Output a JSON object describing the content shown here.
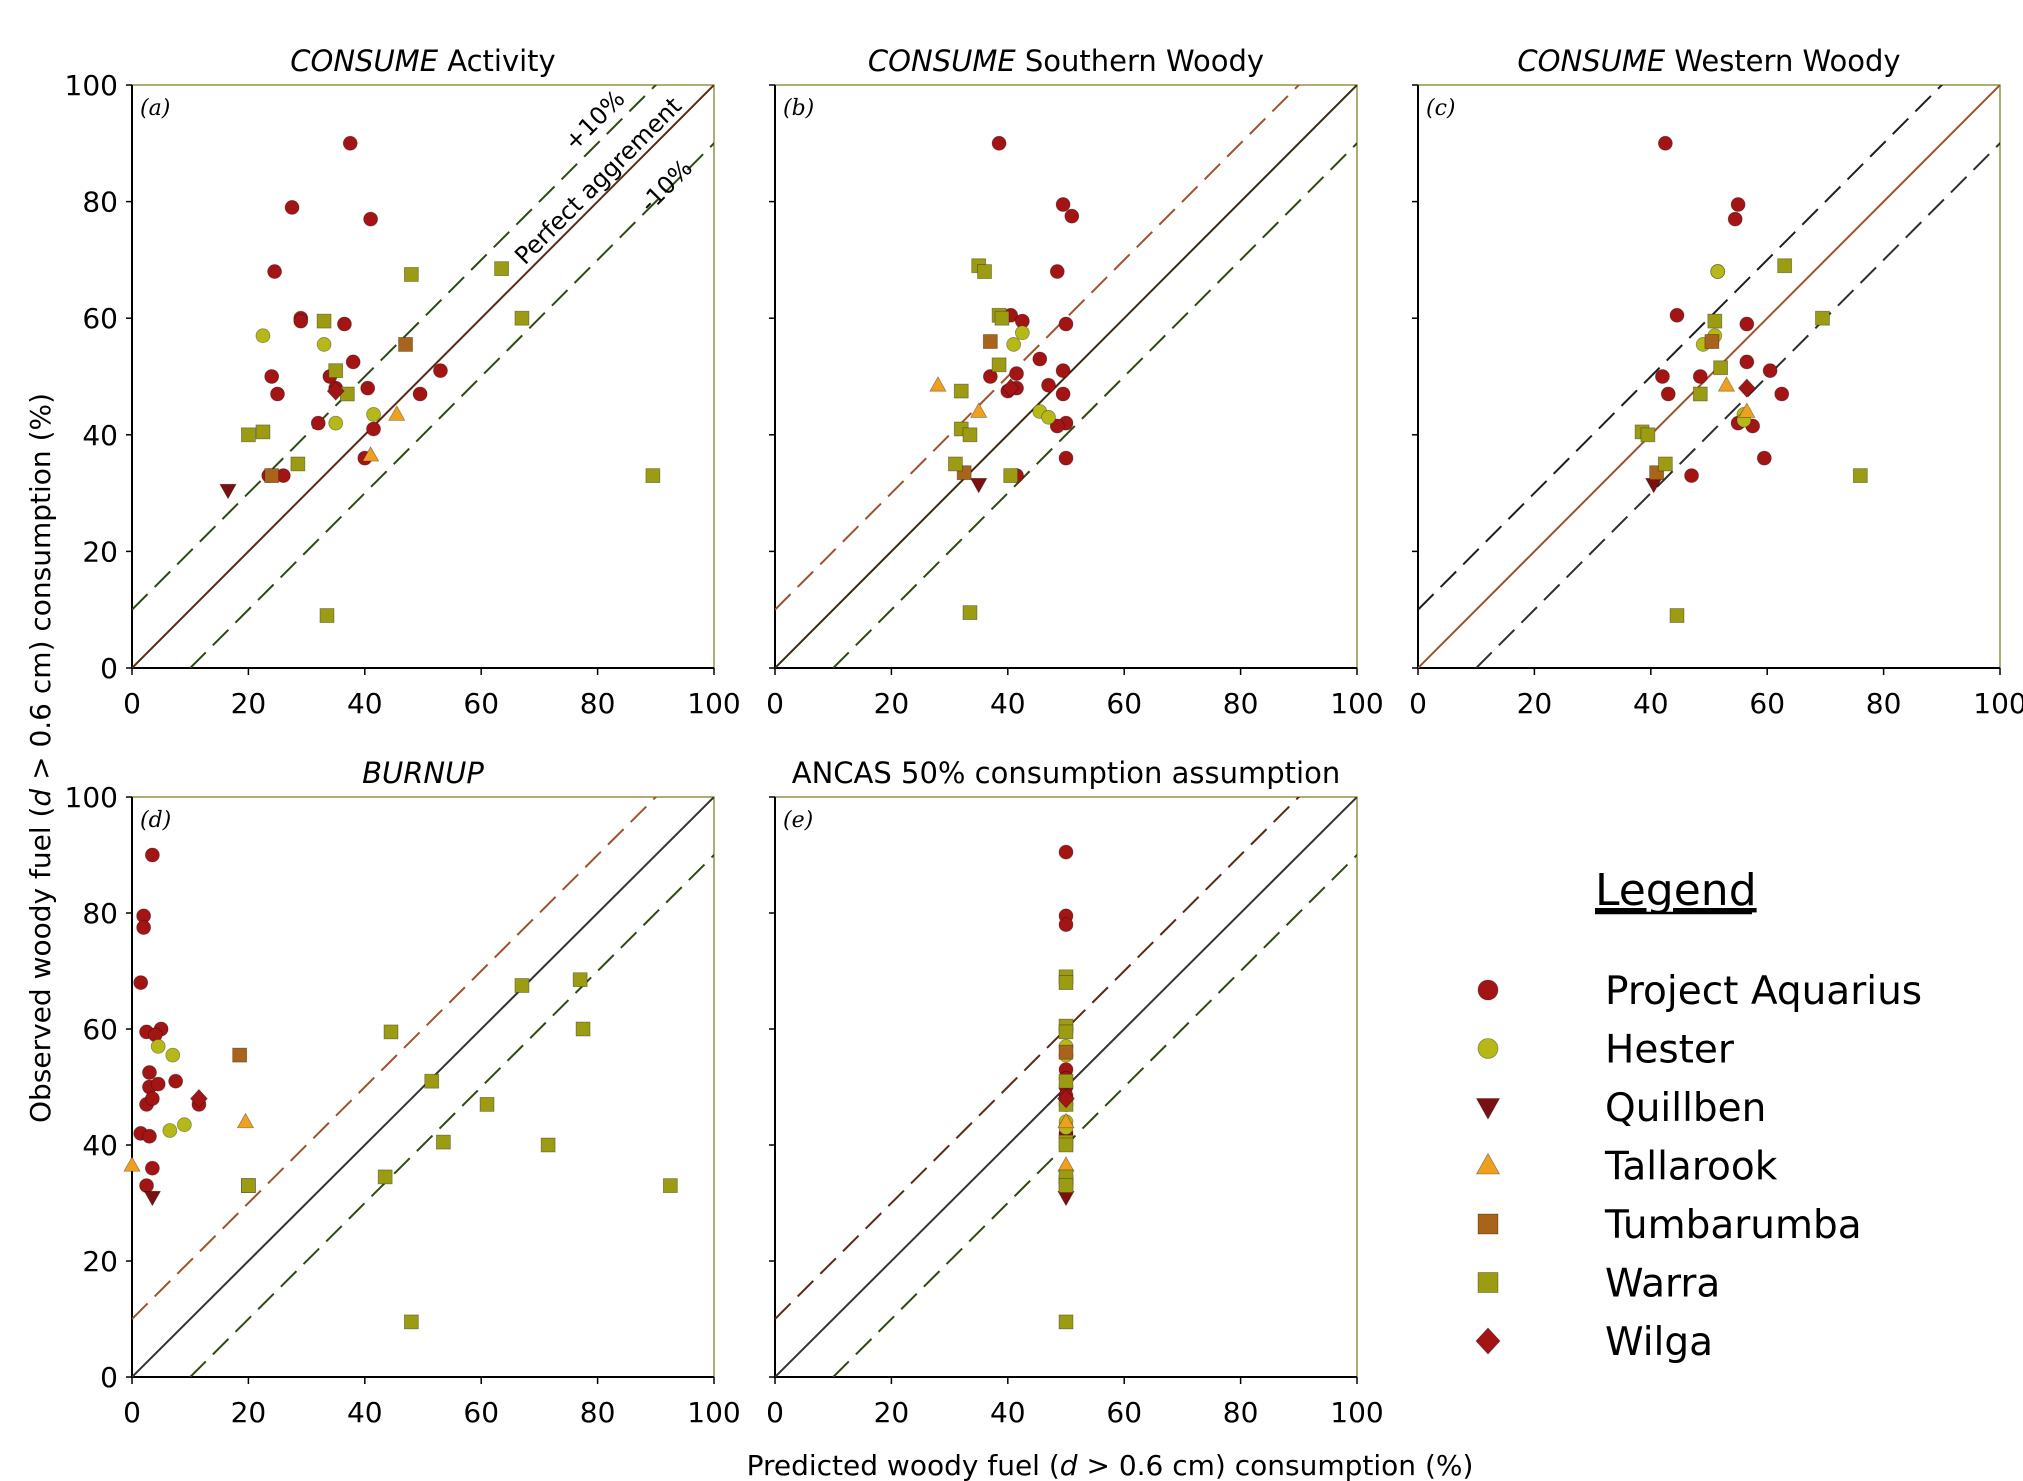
{
  "y_axis_label_parts": [
    "Observed woody fuel (",
    "d",
    " > 0.6 cm) consumption (%)"
  ],
  "x_axis_label_parts": [
    "Predicted woody fuel (",
    "d",
    " > 0.6 cm) consumption (%)"
  ],
  "legend": {
    "title": "Legend",
    "items": [
      {
        "name": "Project Aquarius",
        "marker": "circle",
        "color": "#a31515"
      },
      {
        "name": "Hester",
        "marker": "circle",
        "color": "#b5b817"
      },
      {
        "name": "Quillben",
        "marker": "triangle-down",
        "color": "#7a1010"
      },
      {
        "name": "Tallarook",
        "marker": "triangle-up",
        "color": "#f0a020"
      },
      {
        "name": "Tumbarumba",
        "marker": "square",
        "color": "#a8641a"
      },
      {
        "name": "Warra",
        "marker": "square",
        "color": "#9b9b14"
      },
      {
        "name": "Wilga",
        "marker": "diamond",
        "color": "#a31515"
      }
    ]
  },
  "chart_data": [
    {
      "type": "scatter",
      "panel": "(a)",
      "title_italic": "CONSUME",
      "title_rest": " Activity",
      "xlim": [
        0,
        100
      ],
      "ylim": [
        0,
        100
      ],
      "xticks": [
        "0",
        "20",
        "40",
        "60",
        "80",
        "100"
      ],
      "yticks": [
        "0",
        "20",
        "40",
        "60",
        "80",
        "100"
      ],
      "ref_lines": [
        "+10%",
        "Perfect aggrement",
        "-10%"
      ],
      "annotations": [
        "+10%",
        "Perfect aggrement",
        "-10%"
      ],
      "series": [
        {
          "name": "Project Aquarius",
          "points": [
            [
              37.5,
              90
            ],
            [
              27.5,
              79
            ],
            [
              41,
              77
            ],
            [
              24.5,
              68
            ],
            [
              29,
              60
            ],
            [
              29,
              59.5
            ],
            [
              36.5,
              59
            ],
            [
              38,
              52.5
            ],
            [
              24,
              50
            ],
            [
              34,
              50
            ],
            [
              25,
              47
            ],
            [
              35,
              48
            ],
            [
              40.5,
              48
            ],
            [
              53,
              51
            ],
            [
              49.5,
              47
            ],
            [
              32,
              42
            ],
            [
              41.5,
              41
            ],
            [
              26,
              33
            ],
            [
              23.5,
              33
            ],
            [
              40,
              36
            ]
          ]
        },
        {
          "name": "Hester",
          "points": [
            [
              22.5,
              57
            ],
            [
              33,
              55.5
            ],
            [
              35,
              42
            ],
            [
              41.5,
              43.5
            ]
          ]
        },
        {
          "name": "Quillben",
          "points": [
            [
              16.5,
              30.5
            ]
          ]
        },
        {
          "name": "Tallarook",
          "points": [
            [
              45.5,
              43.5
            ],
            [
              41,
              36.5
            ]
          ]
        },
        {
          "name": "Tumbarumba",
          "points": [
            [
              47,
              55.5
            ],
            [
              24,
              33
            ]
          ]
        },
        {
          "name": "Warra",
          "points": [
            [
              33,
              59.5
            ],
            [
              35,
              51
            ],
            [
              37,
              47
            ],
            [
              48,
              67.5
            ],
            [
              63.5,
              68.5
            ],
            [
              67,
              60
            ],
            [
              20,
              40
            ],
            [
              22.5,
              40.5
            ],
            [
              28.5,
              35
            ],
            [
              89.5,
              33
            ],
            [
              33.5,
              9
            ]
          ]
        },
        {
          "name": "Wilga",
          "points": [
            [
              35,
              47.5
            ]
          ]
        }
      ]
    },
    {
      "type": "scatter",
      "panel": "(b)",
      "title_italic": "CONSUME",
      "title_rest": " Southern Woody",
      "xlim": [
        0,
        100
      ],
      "ylim": [
        0,
        100
      ],
      "xticks": [
        "0",
        "20",
        "40",
        "60",
        "80",
        "100"
      ],
      "yticks": [],
      "series": [
        {
          "name": "Project Aquarius",
          "points": [
            [
              38.5,
              90
            ],
            [
              49.5,
              79.5
            ],
            [
              51,
              77.5
            ],
            [
              48.5,
              68
            ],
            [
              40.5,
              60.5
            ],
            [
              42.5,
              59.5
            ],
            [
              50,
              59
            ],
            [
              45.5,
              53
            ],
            [
              37,
              50
            ],
            [
              41.5,
              50.5
            ],
            [
              49.5,
              51
            ],
            [
              40,
              47.5
            ],
            [
              41.5,
              48
            ],
            [
              47,
              48.5
            ],
            [
              49.5,
              47
            ],
            [
              50,
              42
            ],
            [
              48.5,
              41.5
            ],
            [
              50,
              36
            ],
            [
              41.5,
              33
            ]
          ]
        },
        {
          "name": "Hester",
          "points": [
            [
              41,
              55.5
            ],
            [
              42.5,
              57.5
            ],
            [
              45.5,
              44
            ],
            [
              47,
              43
            ]
          ]
        },
        {
          "name": "Quillben",
          "points": [
            [
              35,
              31.5
            ]
          ]
        },
        {
          "name": "Tallarook",
          "points": [
            [
              28,
              48.5
            ],
            [
              35,
              44
            ]
          ]
        },
        {
          "name": "Tumbarumba",
          "points": [
            [
              37,
              56
            ],
            [
              32.5,
              33.5
            ]
          ]
        },
        {
          "name": "Warra",
          "points": [
            [
              35,
              69
            ],
            [
              36,
              68
            ],
            [
              38.5,
              60.5
            ],
            [
              39,
              60
            ],
            [
              38.5,
              52
            ],
            [
              32,
              47.5
            ],
            [
              32,
              41
            ],
            [
              33.5,
              40
            ],
            [
              31,
              35
            ],
            [
              40.5,
              33
            ],
            [
              33.5,
              9.5
            ]
          ]
        },
        {
          "name": "Wilga",
          "points": [
            [
              40.5,
              48
            ]
          ]
        }
      ]
    },
    {
      "type": "scatter",
      "panel": "(c)",
      "title_italic": "CONSUME",
      "title_rest": " Western Woody",
      "xlim": [
        0,
        100
      ],
      "ylim": [
        0,
        100
      ],
      "xticks": [
        "0",
        "20",
        "40",
        "60",
        "80",
        "100"
      ],
      "yticks": [],
      "series": [
        {
          "name": "Project Aquarius",
          "points": [
            [
              42.5,
              90
            ],
            [
              55,
              79.5
            ],
            [
              54.5,
              77
            ],
            [
              56.5,
              59
            ],
            [
              44.5,
              60.5
            ],
            [
              51.5,
              68
            ],
            [
              42,
              50
            ],
            [
              48.5,
              50
            ],
            [
              56.5,
              52.5
            ],
            [
              60.5,
              51
            ],
            [
              43,
              47
            ],
            [
              62.5,
              47
            ],
            [
              55,
              42
            ],
            [
              57.5,
              41.5
            ],
            [
              59.5,
              36
            ],
            [
              47,
              33
            ],
            [
              50.5,
              56
            ]
          ]
        },
        {
          "name": "Hester",
          "points": [
            [
              51.5,
              68
            ],
            [
              49,
              55.5
            ],
            [
              51,
              57
            ],
            [
              56,
              43.5
            ],
            [
              56,
              42.5
            ]
          ]
        },
        {
          "name": "Quillben",
          "points": [
            [
              40.5,
              31.5
            ]
          ]
        },
        {
          "name": "Tallarook",
          "points": [
            [
              53,
              48.5
            ],
            [
              56.5,
              44
            ]
          ]
        },
        {
          "name": "Tumbarumba",
          "points": [
            [
              50.5,
              56
            ],
            [
              41,
              33.5
            ]
          ]
        },
        {
          "name": "Warra",
          "points": [
            [
              63,
              69
            ],
            [
              51,
              59.5
            ],
            [
              69.5,
              60
            ],
            [
              52,
              51.5
            ],
            [
              48.5,
              47
            ],
            [
              38.5,
              40.5
            ],
            [
              39.5,
              40
            ],
            [
              42.5,
              35
            ],
            [
              76,
              33
            ],
            [
              44.5,
              9
            ]
          ]
        },
        {
          "name": "Wilga",
          "points": [
            [
              56.5,
              48
            ]
          ]
        }
      ]
    },
    {
      "type": "scatter",
      "panel": "(d)",
      "title_italic": "BURNUP",
      "title_rest": "",
      "xlim": [
        0,
        100
      ],
      "ylim": [
        0,
        100
      ],
      "xticks": [
        "0",
        "20",
        "40",
        "60",
        "80",
        "100"
      ],
      "yticks": [
        "0",
        "20",
        "40",
        "60",
        "80",
        "100"
      ],
      "series": [
        {
          "name": "Project Aquarius",
          "points": [
            [
              3.5,
              90
            ],
            [
              2,
              79.5
            ],
            [
              2,
              77.5
            ],
            [
              1.5,
              68
            ],
            [
              5,
              60
            ],
            [
              2.5,
              59.5
            ],
            [
              4,
              59
            ],
            [
              3,
              52.5
            ],
            [
              7.5,
              51
            ],
            [
              3,
              50
            ],
            [
              4.5,
              50.5
            ],
            [
              2.5,
              47
            ],
            [
              3.5,
              48
            ],
            [
              11.5,
              47
            ],
            [
              1.5,
              42
            ],
            [
              3,
              41.5
            ],
            [
              3.5,
              36
            ],
            [
              2.5,
              33
            ]
          ]
        },
        {
          "name": "Hester",
          "points": [
            [
              4.5,
              57
            ],
            [
              7,
              55.5
            ],
            [
              9,
              43.5
            ],
            [
              6.5,
              42.5
            ]
          ]
        },
        {
          "name": "Quillben",
          "points": [
            [
              3.5,
              31
            ]
          ]
        },
        {
          "name": "Tallarook",
          "points": [
            [
              19.5,
              44
            ],
            [
              0,
              36.5
            ]
          ]
        },
        {
          "name": "Tumbarumba",
          "points": [
            [
              18.5,
              55.5
            ],
            [
              20,
              33
            ]
          ]
        },
        {
          "name": "Warra",
          "points": [
            [
              67,
              67.5
            ],
            [
              77,
              68.5
            ],
            [
              77.5,
              60
            ],
            [
              44.5,
              59.5
            ],
            [
              51.5,
              51
            ],
            [
              61,
              47
            ],
            [
              53.5,
              40.5
            ],
            [
              71.5,
              40
            ],
            [
              43.5,
              34.5
            ],
            [
              92.5,
              33
            ],
            [
              48,
              9.5
            ],
            [
              20,
              33
            ]
          ]
        },
        {
          "name": "Wilga",
          "points": [
            [
              11.5,
              48
            ]
          ]
        }
      ]
    },
    {
      "type": "scatter",
      "panel": "(e)",
      "title_italic": "",
      "title_rest": "ANCAS 50% consumption assumption",
      "xlim": [
        0,
        100
      ],
      "ylim": [
        0,
        100
      ],
      "xticks": [
        "0",
        "20",
        "40",
        "60",
        "80",
        "100"
      ],
      "yticks": [],
      "series": [
        {
          "name": "Project Aquarius",
          "points": [
            [
              50,
              90.5
            ],
            [
              50,
              79.5
            ],
            [
              50,
              78
            ],
            [
              50,
              60
            ],
            [
              50,
              53
            ],
            [
              50,
              51.5
            ],
            [
              50,
              50
            ],
            [
              50,
              48.5
            ],
            [
              50,
              47
            ],
            [
              50,
              42
            ],
            [
              50,
              41.5
            ]
          ]
        },
        {
          "name": "Hester",
          "points": [
            [
              50,
              57
            ],
            [
              50,
              55.5
            ],
            [
              50,
              44
            ],
            [
              50,
              43
            ]
          ]
        },
        {
          "name": "Quillben",
          "points": [
            [
              50,
              31
            ]
          ]
        },
        {
          "name": "Tallarook",
          "points": [
            [
              50,
              44
            ],
            [
              50,
              36.5
            ]
          ]
        },
        {
          "name": "Tumbarumba",
          "points": [
            [
              50,
              56
            ],
            [
              50,
              33.5
            ]
          ]
        },
        {
          "name": "Warra",
          "points": [
            [
              50,
              69
            ],
            [
              50,
              68
            ],
            [
              50,
              60.5
            ],
            [
              50,
              59.5
            ],
            [
              50,
              51
            ],
            [
              50,
              47
            ],
            [
              50,
              40.5
            ],
            [
              50,
              40
            ],
            [
              50,
              34.5
            ],
            [
              50,
              33
            ],
            [
              50,
              9.5
            ]
          ]
        },
        {
          "name": "Wilga",
          "points": [
            [
              50,
              48
            ]
          ]
        }
      ]
    }
  ]
}
